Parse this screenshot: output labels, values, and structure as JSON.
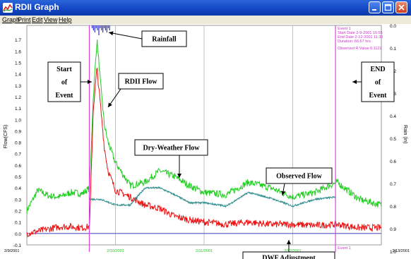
{
  "window": {
    "title": "RDII Graph",
    "menu": [
      "Graph",
      "Print",
      "Edit",
      "View",
      "Help"
    ]
  },
  "event_info": {
    "name": "Event 1",
    "start": "Start Date 2-9-2001 16:55",
    "end": "End Date 2-12-2001 11:35",
    "duration": "Duration: 66.67 hrs",
    "r_value": "Observed R Value 0.1122",
    "bottom_label": "Event 1"
  },
  "axes": {
    "left_label": "Flow(CFS)",
    "right_label": "Rain (in)",
    "left_ticks": [
      "1.7",
      "1.6",
      "1.5",
      "1.4",
      "1.3",
      "1.2",
      "1.1",
      "1.0",
      "0.9",
      "0.8",
      "0.7",
      "0.6",
      "0.5",
      "0.4",
      "0.3",
      "0.2",
      "0.1",
      "0.0",
      "-0.1"
    ],
    "right_ticks": [
      "0.0",
      "0.1",
      "0.2",
      "0.3",
      "0.4",
      "0.5",
      "0.6",
      "0.7",
      "0.8",
      "0.9",
      "1.0"
    ],
    "x_ticks": [
      {
        "label": "2/9/2001",
        "t": 0
      },
      {
        "label": "2/10/2001",
        "t": 1
      },
      {
        "label": "2/11/2001",
        "t": 2
      },
      {
        "label": "2/12/2001",
        "t": 3
      },
      {
        "label": "2/13/2001",
        "t": 4
      }
    ]
  },
  "annotations": {
    "rainfall": "Rainfall",
    "start": [
      "Start",
      "of",
      "Event"
    ],
    "end": [
      "END",
      "of",
      "Event"
    ],
    "rdii": "RDII Flow",
    "dwf": "Dry-Weather Flow",
    "observed": "Observed Flow",
    "dwf_adj": "DWF Adjustment"
  },
  "colors": {
    "observed": "#22cc22",
    "rdii": "#ee1111",
    "dwf": "#338f8f",
    "event_line": "#dd44dd",
    "rain": "#3333cc",
    "event_text": "#cc33cc",
    "grid": "#c0c0c0",
    "zero": "#5555cc"
  },
  "chart_data": {
    "type": "line",
    "title": "",
    "ylabel": "Flow(CFS)",
    "y2label": "Rain (in)",
    "ylim": [
      -0.1,
      1.8
    ],
    "y2lim": [
      0.0,
      1.0
    ],
    "event": {
      "start": "2/9/2001 16:55",
      "end": "2/12/2001 11:35"
    },
    "series": [
      {
        "name": "Observed Flow",
        "x": [
          "2/9/2001 00:00",
          "2/9/2001 03:00",
          "2/9/2001 06:00",
          "2/9/2001 09:00",
          "2/9/2001 12:00",
          "2/9/2001 15:00",
          "2/9/2001 17:00",
          "2/9/2001 18:00",
          "2/9/2001 19:00",
          "2/9/2001 20:00",
          "2/9/2001 21:00",
          "2/9/2001 22:00",
          "2/10/2001 00:00",
          "2/10/2001 04:00",
          "2/10/2001 08:00",
          "2/10/2001 12:00",
          "2/10/2001 16:00",
          "2/10/2001 20:00",
          "2/11/2001 00:00",
          "2/11/2001 06:00",
          "2/11/2001 12:00",
          "2/11/2001 18:00",
          "2/12/2001 00:00",
          "2/12/2001 06:00",
          "2/12/2001 12:00",
          "2/12/2001 18:00",
          "2/13/2001 00:00"
        ],
        "values": [
          0.2,
          0.38,
          0.33,
          0.32,
          0.36,
          0.35,
          0.4,
          1.2,
          1.7,
          1.3,
          0.95,
          0.8,
          0.62,
          0.42,
          0.45,
          0.55,
          0.5,
          0.42,
          0.36,
          0.34,
          0.45,
          0.4,
          0.32,
          0.36,
          0.45,
          0.3,
          0.25
        ]
      },
      {
        "name": "RDII Flow",
        "x": [
          "2/9/2001 00:00",
          "2/9/2001 03:00",
          "2/9/2001 06:00",
          "2/9/2001 09:00",
          "2/9/2001 12:00",
          "2/9/2001 15:00",
          "2/9/2001 17:00",
          "2/9/2001 18:00",
          "2/9/2001 19:00",
          "2/9/2001 20:00",
          "2/9/2001 21:00",
          "2/9/2001 22:00",
          "2/10/2001 00:00",
          "2/10/2001 04:00",
          "2/10/2001 08:00",
          "2/10/2001 12:00",
          "2/10/2001 16:00",
          "2/10/2001 20:00",
          "2/11/2001 00:00",
          "2/11/2001 06:00",
          "2/11/2001 12:00",
          "2/11/2001 18:00",
          "2/12/2001 00:00",
          "2/12/2001 06:00",
          "2/12/2001 12:00",
          "2/12/2001 18:00",
          "2/13/2001 00:00"
        ],
        "values": [
          0.0,
          0.02,
          0.04,
          0.06,
          0.06,
          0.05,
          0.06,
          1.1,
          1.45,
          1.1,
          0.75,
          0.55,
          0.38,
          0.32,
          0.25,
          0.22,
          0.15,
          0.12,
          0.1,
          0.08,
          0.1,
          0.08,
          0.08,
          0.07,
          0.08,
          0.05,
          0.05
        ]
      },
      {
        "name": "Dry-Weather Flow",
        "x": [
          "2/9/2001 16:55",
          "2/9/2001 20:00",
          "2/10/2001 00:00",
          "2/10/2001 04:00",
          "2/10/2001 08:00",
          "2/10/2001 12:00",
          "2/10/2001 16:00",
          "2/10/2001 20:00",
          "2/11/2001 00:00",
          "2/11/2001 06:00",
          "2/11/2001 12:00",
          "2/11/2001 18:00",
          "2/12/2001 00:00",
          "2/12/2001 06:00",
          "2/12/2001 11:35"
        ],
        "values": [
          0.3,
          0.3,
          0.25,
          0.25,
          0.4,
          0.4,
          0.34,
          0.27,
          0.27,
          0.24,
          0.36,
          0.31,
          0.24,
          0.3,
          0.32
        ]
      },
      {
        "name": "DWF Adjustment",
        "x": [
          "2/9/2001 16:55",
          "2/12/2001 11:35"
        ],
        "values": [
          0.0,
          0.0
        ]
      }
    ]
  }
}
